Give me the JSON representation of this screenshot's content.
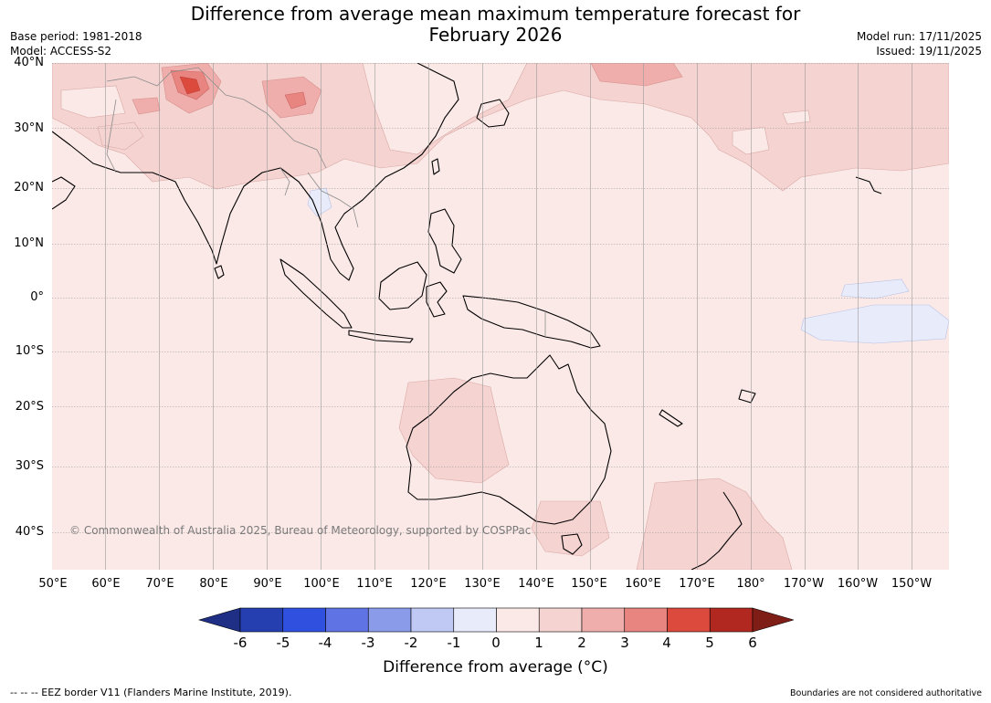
{
  "header": {
    "title_line1": "Difference from average mean maximum temperature forecast for",
    "title_line2": "February 2026",
    "base_period": "Base period: 1981-2018",
    "model": "Model: ACCESS-S2",
    "model_run": "Model run: 17/11/2025",
    "issued": "Issued: 19/11/2025"
  },
  "map": {
    "copyright": "© Commonwealth of Australia 2025, Bureau of Meteorology, supported by COSPPac",
    "lat_labels": [
      "40°N",
      "30°N",
      "20°N",
      "10°N",
      "0°",
      "10°S",
      "20°S",
      "30°S",
      "40°S"
    ],
    "lon_labels": [
      "50°E",
      "60°E",
      "70°E",
      "80°E",
      "90°E",
      "100°E",
      "110°E",
      "120°E",
      "130°E",
      "140°E",
      "150°E",
      "160°E",
      "170°E",
      "180°",
      "170°W",
      "160°W",
      "150°W"
    ]
  },
  "colorbar": {
    "ticks": [
      "-6",
      "-5",
      "-4",
      "-3",
      "-2",
      "-1",
      "0",
      "1",
      "2",
      "3",
      "4",
      "5",
      "6"
    ],
    "colors": [
      "#1f2f86",
      "#263fb0",
      "#3050e0",
      "#6073e4",
      "#8a9bea",
      "#c0c8f4",
      "#e8ecfa",
      "#fbe9e7",
      "#f4d3d1",
      "#efaeab",
      "#e88580",
      "#dc4a3e",
      "#b0281f",
      "#7f1d17"
    ],
    "label": "Difference from average (°C)"
  },
  "footer": {
    "eez": "--  --  -- EEZ border V11 (Flanders Marine Institute, 2019).",
    "boundaries": "Boundaries are not considered authoritative"
  }
}
